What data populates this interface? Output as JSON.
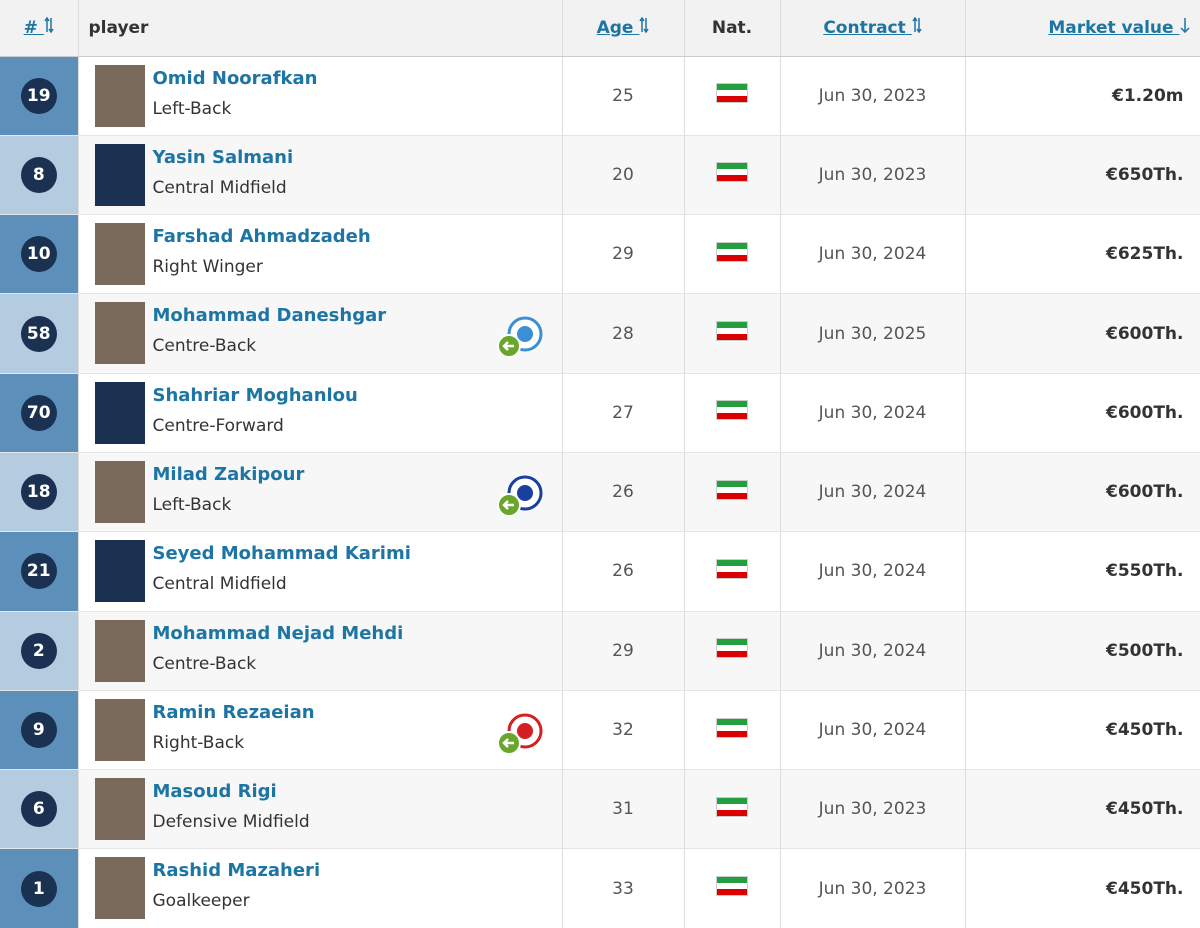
{
  "table": {
    "columns": [
      "#",
      "player",
      "Age",
      "Nat.",
      "Contract",
      "Market value"
    ],
    "rows": [
      {
        "number": 19,
        "name": "Omid Noorafkan",
        "position": "Left-Back",
        "age": 25,
        "contract": "Jun 30, 2023",
        "value": "€1.20m"
      },
      {
        "number": 8,
        "name": "Yasin Salmani",
        "position": "Central Midfield",
        "age": 20,
        "contract": "Jun 30, 2023",
        "value": "€650Th."
      },
      {
        "number": 10,
        "name": "Farshad Ahmadzadeh",
        "position": "Right Winger",
        "age": 29,
        "contract": "Jun 30, 2024",
        "value": "€625Th."
      },
      {
        "number": 58,
        "name": "Mohammad Daneshgar",
        "position": "Centre-Back",
        "age": 28,
        "contract": "Jun 30, 2025",
        "value": "€600Th."
      },
      {
        "number": 70,
        "name": "Shahriar Moghanlou",
        "position": "Centre-Forward",
        "age": 27,
        "contract": "Jun 30, 2024",
        "value": "€600Th."
      },
      {
        "number": 18,
        "name": "Milad Zakipour",
        "position": "Left-Back",
        "age": 26,
        "contract": "Jun 30, 2024",
        "value": "€600Th."
      },
      {
        "number": 21,
        "name": "Seyed Mohammad Karimi",
        "position": "Central Midfield",
        "age": 26,
        "contract": "Jun 30, 2024",
        "value": "€550Th."
      },
      {
        "number": 2,
        "name": "Mohammad Nejad Mehdi",
        "position": "Centre-Back",
        "age": 29,
        "contract": "Jun 30, 2024",
        "value": "€500Th."
      },
      {
        "number": 9,
        "name": "Ramin Rezaeian",
        "position": "Right-Back",
        "age": 32,
        "contract": "Jun 30, 2024",
        "value": "€450Th."
      },
      {
        "number": 6,
        "name": "Masoud Rigi",
        "position": "Defensive Midfield",
        "age": 31,
        "contract": "Jun 30, 2023",
        "value": "€450Th."
      },
      {
        "number": 1,
        "name": "Rashid Mazaheri",
        "position": "Goalkeeper",
        "age": 33,
        "contract": "Jun 30, 2023",
        "value": "€450Th."
      }
    ]
  }
}
